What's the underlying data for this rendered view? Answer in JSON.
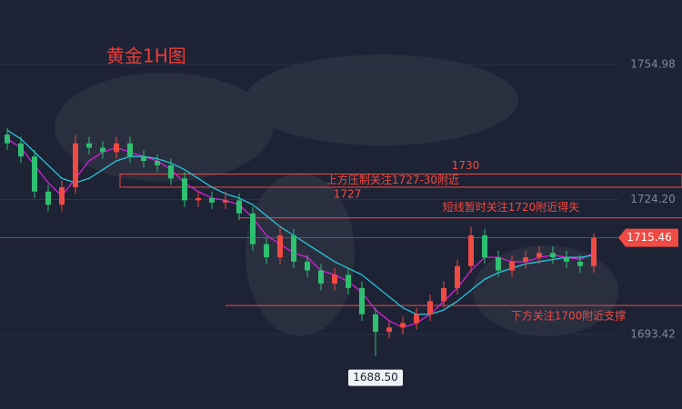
{
  "chart_data": {
    "type": "candlestick",
    "title": "黄金1H图",
    "up_color": "#ef4a43",
    "down_color": "#2fbf71",
    "ylim": [
      1676.4,
      1769.7
    ],
    "yticks": [
      1754.98,
      {
        "value": 1724.2,
        "label": "1724.20"
      },
      1693.42
    ],
    "grid": true,
    "open": [
      1739,
      1737,
      1734,
      1726,
      1723,
      1727,
      1737,
      1736,
      1735,
      1737,
      1734,
      1733,
      1732,
      1729,
      1724,
      1724.5,
      1723.5,
      1724,
      1721,
      1714,
      1711,
      1716,
      1710,
      1708,
      1705,
      1707,
      1704,
      1698,
      1694,
      1695,
      1696,
      1698,
      1701,
      1704,
      1709,
      1716,
      1711,
      1708,
      1710,
      1711,
      1712,
      1711,
      1710,
      1709
    ],
    "high": [
      1740.5,
      1738.5,
      1735.5,
      1727.5,
      1728.5,
      1739,
      1738.5,
      1737.5,
      1738.5,
      1738.5,
      1735.5,
      1734.5,
      1733.5,
      1730.5,
      1726,
      1726,
      1726,
      1725.5,
      1722.5,
      1715.5,
      1718,
      1717.5,
      1711.5,
      1709.5,
      1708.5,
      1708.5,
      1705.5,
      1699.5,
      1696.5,
      1697.5,
      1699.5,
      1702.5,
      1705.5,
      1710.5,
      1718,
      1717.5,
      1712.5,
      1711.5,
      1712.5,
      1713.5,
      1713.5,
      1712.5,
      1711.5,
      1716.5
    ],
    "low": [
      1735.5,
      1732.5,
      1724.5,
      1721.5,
      1721.5,
      1725.5,
      1734.5,
      1733.5,
      1733.5,
      1732.5,
      1731.5,
      1730.5,
      1727.5,
      1722.5,
      1722.5,
      1722,
      1722,
      1719.5,
      1712.5,
      1709.5,
      1709.5,
      1708.5,
      1706.5,
      1703.5,
      1703.5,
      1702.5,
      1696.5,
      1688.5,
      1692.5,
      1693.5,
      1694.5,
      1696.5,
      1699.5,
      1702.5,
      1707.5,
      1709.5,
      1706.5,
      1706.5,
      1708.5,
      1709.5,
      1709.5,
      1708.5,
      1707.5,
      1707.5
    ],
    "close": [
      1737,
      1734,
      1726,
      1723,
      1727,
      1737,
      1736,
      1735,
      1737,
      1734,
      1733,
      1732,
      1729,
      1724,
      1724.5,
      1723.5,
      1724,
      1721,
      1714,
      1711,
      1716,
      1710,
      1708,
      1705,
      1707,
      1704,
      1698,
      1694,
      1695,
      1696,
      1698,
      1701,
      1704,
      1709,
      1716,
      1711,
      1708,
      1710,
      1711,
      1712,
      1711,
      1710,
      1709,
      1715.46
    ],
    "low_label": "1688.50",
    "moving_averages": [
      {
        "color": "#d61fd6",
        "values": [
          1738,
          1736,
          1732,
          1728,
          1725,
          1729,
          1733,
          1735,
          1736,
          1735,
          1734,
          1733,
          1731,
          1728,
          1726,
          1724.5,
          1724,
          1723,
          1720,
          1716,
          1714,
          1712,
          1711,
          1708,
          1707,
          1705.5,
          1703,
          1699,
          1696.5,
          1695,
          1696,
          1698,
          1701,
          1704,
          1708,
          1711,
          1711,
          1710,
          1710,
          1711,
          1711.5,
          1711,
          1710.5,
          1712
        ]
      },
      {
        "color": "#26c6da",
        "values": [
          1740,
          1738,
          1735,
          1732,
          1729,
          1728,
          1729,
          1731,
          1733,
          1734,
          1734,
          1733.5,
          1732.5,
          1731,
          1729,
          1727,
          1725.5,
          1724.5,
          1723,
          1720.5,
          1718,
          1716,
          1714,
          1712,
          1710,
          1708.5,
          1707,
          1704.5,
          1702,
          1699.5,
          1698,
          1698,
          1699,
          1701,
          1703.5,
          1706,
          1707.5,
          1708.5,
          1709.5,
          1710,
          1710.5,
          1711,
          1711,
          1711.5
        ]
      }
    ],
    "resistance_zone": {
      "top": 1730,
      "bottom": 1727,
      "text": "上方压制关注1727-30附近"
    },
    "levels": [
      {
        "value": 1720,
        "text": "短线暂时关注1720附近得失"
      },
      {
        "value": 1700,
        "text": "下方关注1700附近支撑"
      }
    ],
    "annotation_color": "#ef4a43"
  }
}
